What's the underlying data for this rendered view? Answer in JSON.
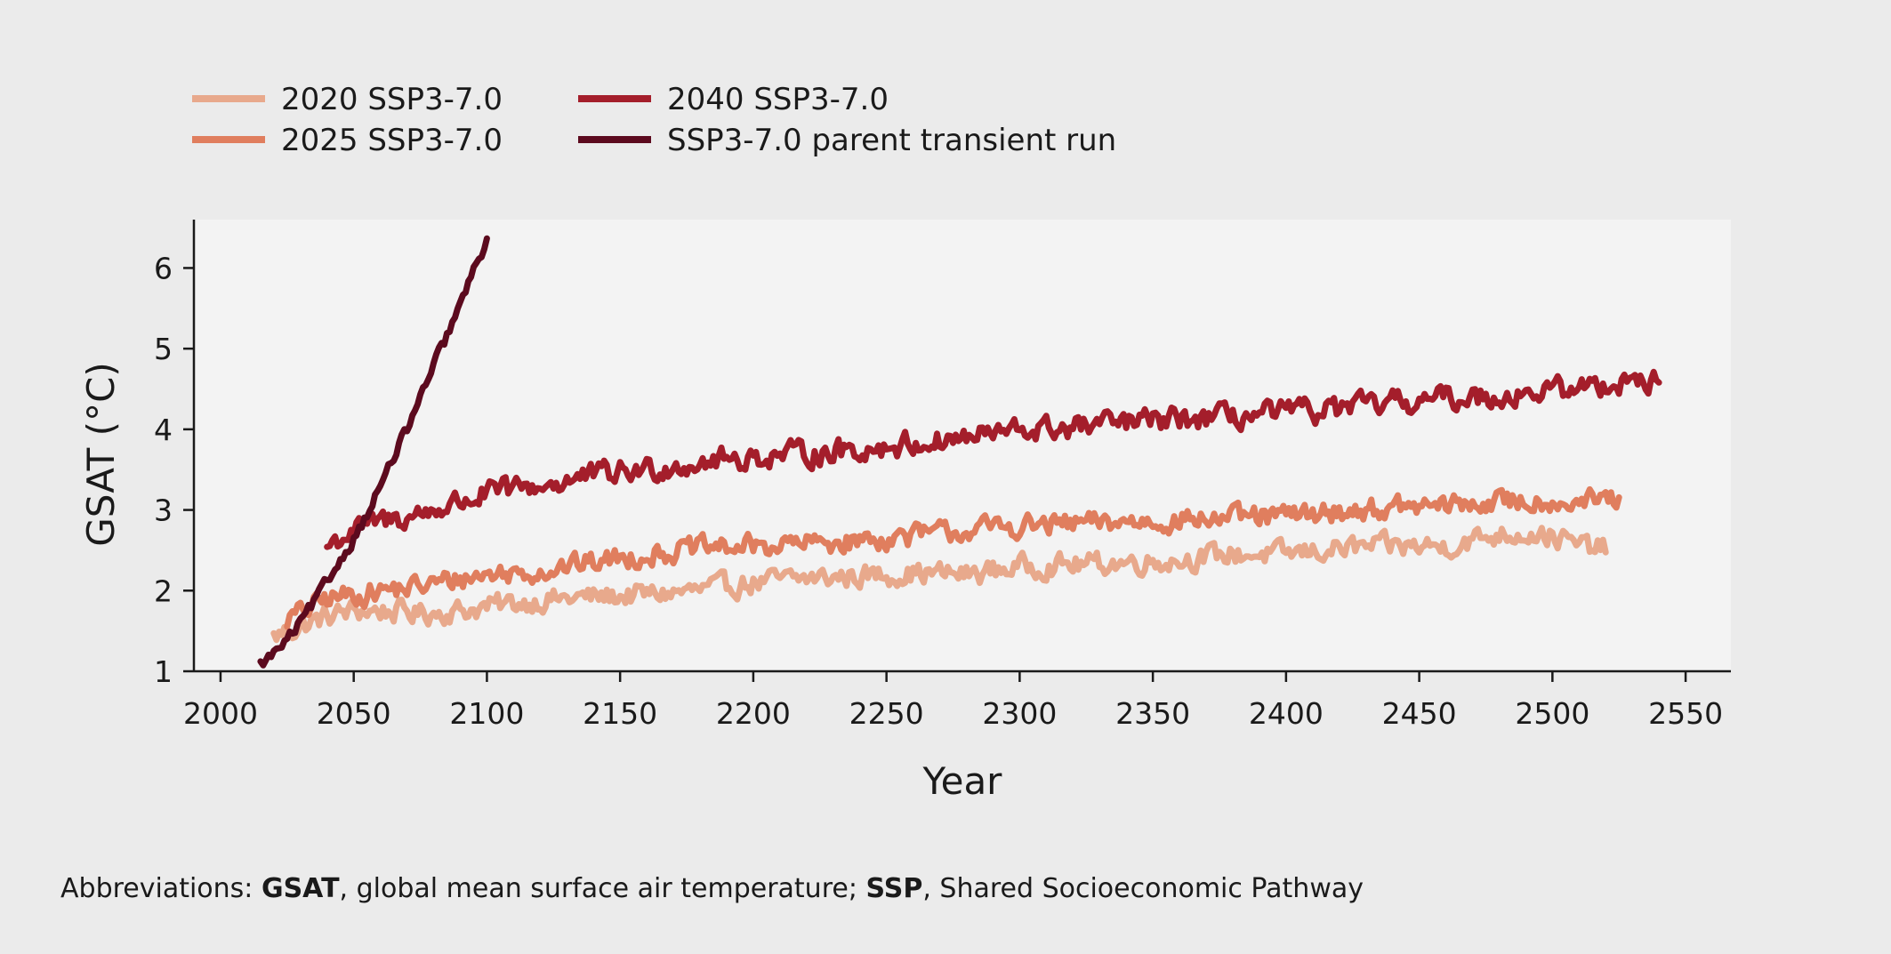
{
  "chart_data": {
    "type": "line",
    "title": "",
    "xlabel": "Year",
    "ylabel": "GSAT (°C)",
    "xlim": [
      1990,
      2567
    ],
    "ylim": [
      1.0,
      6.6
    ],
    "xticks": [
      2000,
      2050,
      2100,
      2150,
      2200,
      2250,
      2300,
      2350,
      2400,
      2450,
      2500,
      2550
    ],
    "yticks": [
      1,
      2,
      3,
      4,
      5,
      6
    ],
    "grid": false,
    "legend_position": "top-left, above plot, two columns",
    "series": [
      {
        "name": "2020 SSP3-7.0",
        "color": "#e8a98c",
        "x": [
          2020,
          2025,
          2030,
          2040,
          2050,
          2060,
          2075,
          2090,
          2100,
          2120,
          2140,
          2160,
          2180,
          2200,
          2220,
          2240,
          2260,
          2280,
          2300,
          2320,
          2340,
          2360,
          2380,
          2400,
          2420,
          2440,
          2460,
          2480,
          2490,
          2500,
          2510,
          2520
        ],
        "values": [
          1.42,
          1.5,
          1.55,
          1.68,
          1.75,
          1.75,
          1.72,
          1.75,
          1.8,
          1.88,
          1.92,
          1.95,
          2.0,
          2.1,
          2.15,
          2.18,
          2.22,
          2.2,
          2.3,
          2.32,
          2.35,
          2.38,
          2.45,
          2.45,
          2.52,
          2.55,
          2.55,
          2.7,
          2.72,
          2.68,
          2.55,
          2.52
        ],
        "noise": 0.12
      },
      {
        "name": "2025 SSP3-7.0",
        "color": "#e07e5e",
        "x": [
          2025,
          2030,
          2040,
          2050,
          2060,
          2075,
          2090,
          2100,
          2120,
          2140,
          2160,
          2180,
          2200,
          2220,
          2240,
          2260,
          2280,
          2300,
          2320,
          2340,
          2360,
          2380,
          2400,
          2420,
          2440,
          2460,
          2480,
          2500,
          2510,
          2520,
          2525
        ],
        "values": [
          1.65,
          1.72,
          1.9,
          1.95,
          2.0,
          2.05,
          2.15,
          2.2,
          2.25,
          2.35,
          2.45,
          2.52,
          2.55,
          2.58,
          2.62,
          2.68,
          2.75,
          2.8,
          2.82,
          2.85,
          2.88,
          2.9,
          2.92,
          2.98,
          3.02,
          3.05,
          3.1,
          3.12,
          3.1,
          3.12,
          3.12
        ],
        "noise": 0.12
      },
      {
        "name": "2040 SSP3-7.0",
        "color": "#a41e2b",
        "x": [
          2040,
          2045,
          2050,
          2060,
          2075,
          2090,
          2100,
          2120,
          2140,
          2160,
          2180,
          2200,
          2220,
          2240,
          2260,
          2280,
          2300,
          2320,
          2340,
          2360,
          2380,
          2400,
          2420,
          2440,
          2460,
          2480,
          2500,
          2520,
          2530,
          2540
        ],
        "values": [
          2.55,
          2.65,
          2.75,
          2.85,
          2.95,
          3.1,
          3.2,
          3.3,
          3.42,
          3.5,
          3.6,
          3.65,
          3.7,
          3.75,
          3.82,
          3.9,
          3.98,
          4.02,
          4.08,
          4.12,
          4.15,
          4.2,
          4.25,
          4.32,
          4.38,
          4.42,
          4.48,
          4.55,
          4.65,
          4.55
        ],
        "noise": 0.13
      },
      {
        "name": "SSP3-7.0 parent transient run",
        "color": "#5c0a1e",
        "x": [
          2015,
          2020,
          2025,
          2030,
          2035,
          2040,
          2045,
          2050,
          2055,
          2060,
          2065,
          2070,
          2075,
          2080,
          2085,
          2090,
          2095,
          2100
        ],
        "values": [
          1.08,
          1.22,
          1.38,
          1.6,
          1.85,
          2.1,
          2.38,
          2.65,
          2.95,
          3.3,
          3.65,
          4.0,
          4.38,
          4.78,
          5.15,
          5.55,
          5.95,
          6.35
        ],
        "noise": 0.06
      }
    ]
  },
  "footnote": {
    "prefix": "Abbreviations: ",
    "term1": "GSAT",
    "def1": ", global mean surface air temperature; ",
    "term2": "SSP",
    "def2": ", Shared Socioeconomic Pathway"
  }
}
